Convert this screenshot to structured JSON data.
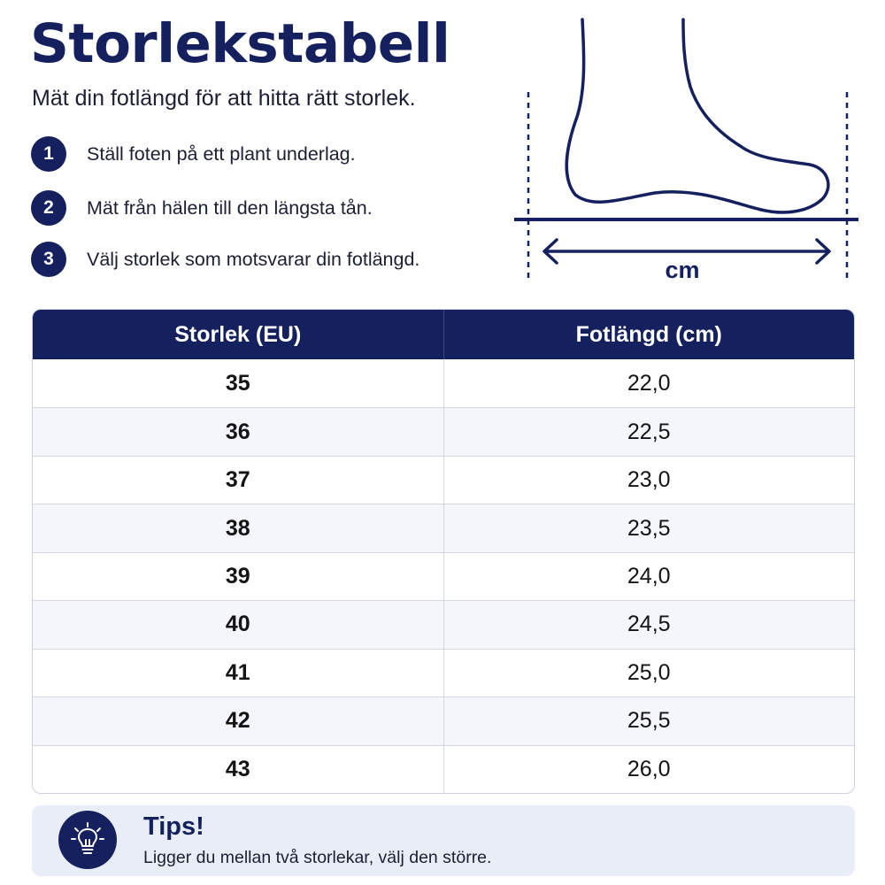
{
  "header": {
    "title": "Storlekstabell",
    "subtitle": "Mät din fotlängd för att hitta rätt storlek."
  },
  "steps": [
    {
      "number": "1",
      "text": "Ställ foten på ett plant underlag."
    },
    {
      "number": "2",
      "text": "Mät från hälen till den längsta tån."
    },
    {
      "number": "3",
      "text": "Välj storlek som motsvarar din fotlängd."
    }
  ],
  "illustration": {
    "icon": "foot-measure-icon",
    "unit_label": "cm"
  },
  "table": {
    "headers": [
      "Storlek (EU)",
      "Fotlängd (cm)"
    ],
    "rows": [
      {
        "size": "35",
        "length": "22,0"
      },
      {
        "size": "36",
        "length": "22,5"
      },
      {
        "size": "37",
        "length": "23,0"
      },
      {
        "size": "38",
        "length": "23,5"
      },
      {
        "size": "39",
        "length": "24,0"
      },
      {
        "size": "40",
        "length": "24,5"
      },
      {
        "size": "41",
        "length": "25,0"
      },
      {
        "size": "42",
        "length": "25,5"
      },
      {
        "size": "43",
        "length": "26,0"
      }
    ]
  },
  "tips": {
    "icon": "lightbulb-icon",
    "title": "Tips!",
    "text": "Ligger du mellan två storlekar, välj den större."
  },
  "colors": {
    "navy": "#14215e",
    "row_alt": "#f5f6fb",
    "tips_bg": "#e9edf8"
  }
}
